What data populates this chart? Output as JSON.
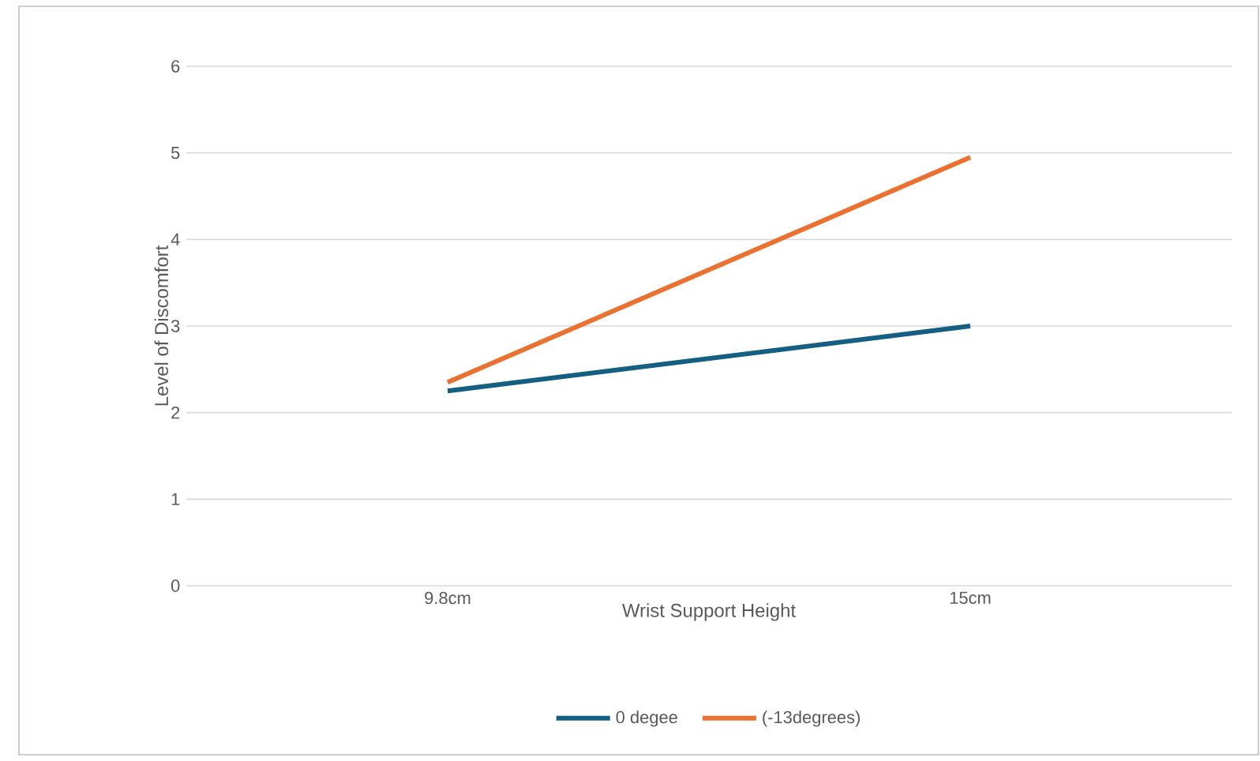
{
  "chart_data": {
    "type": "line",
    "xlabel": "Wrist Support Height",
    "ylabel": "Level of Discomfort",
    "categories": [
      "9.8cm",
      "15cm"
    ],
    "series": [
      {
        "name": "0 degee",
        "color": "#156082",
        "values": [
          2.25,
          3.0
        ]
      },
      {
        "name": "(-13degrees)",
        "color": "#e97132",
        "values": [
          2.35,
          4.95
        ]
      }
    ],
    "ylim": [
      0,
      6
    ],
    "yticks": [
      0,
      1,
      2,
      3,
      4,
      5,
      6
    ],
    "grid": "y",
    "legend": "bottom",
    "marker": "none",
    "line_style": "solid"
  }
}
